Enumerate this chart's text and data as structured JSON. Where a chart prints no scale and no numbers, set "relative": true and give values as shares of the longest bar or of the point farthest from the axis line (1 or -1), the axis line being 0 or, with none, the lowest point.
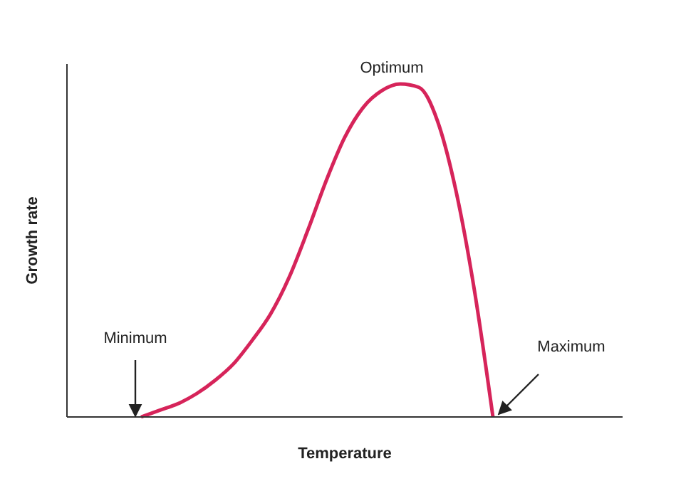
{
  "chart_data": {
    "type": "line",
    "relative": true,
    "xlabel": "Temperature",
    "ylabel": "Growth rate",
    "grid": false,
    "marker": "none",
    "line_style": "solid",
    "categories": [
      null,
      null,
      null,
      null,
      null,
      null,
      null,
      null,
      null,
      null,
      null,
      null,
      null,
      null,
      null,
      null,
      null,
      null,
      null,
      null,
      null,
      null,
      null,
      null,
      null,
      null,
      null,
      null,
      null,
      null,
      null
    ],
    "series": [
      {
        "color": "#d6245a",
        "values": [
          null,
          null,
          null,
          null,
          0,
          0.02,
          0.04,
          0.07,
          0.11,
          0.16,
          0.23,
          0.31,
          0.42,
          0.56,
          0.71,
          0.84,
          0.93,
          0.98,
          1,
          0.99,
          0.89,
          0.68,
          0.38,
          0,
          null,
          null,
          null,
          null,
          null,
          null,
          null
        ]
      }
    ],
    "annotations": [
      "Minimum",
      "Optimum",
      "Maximum"
    ]
  }
}
